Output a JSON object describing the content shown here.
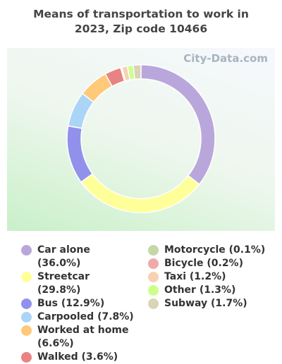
{
  "chart_data": {
    "type": "donut",
    "title": "Means of transportation to work in 2023, Zip code 10466",
    "watermark": "City-Data.com",
    "categories": [
      "Car alone (36.0%)",
      "Streetcar (29.8%)",
      "Bus (12.9%)",
      "Carpooled (7.8%)",
      "Worked at home (6.6%)",
      "Walked (3.6%)",
      "Motorcycle (0.1%)",
      "Bicycle (0.2%)",
      "Taxi (1.2%)",
      "Other (1.3%)",
      "Subway (1.7%)"
    ],
    "values": [
      36.0,
      29.8,
      12.9,
      7.8,
      6.6,
      3.6,
      0.1,
      0.2,
      1.2,
      1.3,
      1.7
    ],
    "colors": [
      "#b9a7dc",
      "#ffff99",
      "#9191ec",
      "#aad5f6",
      "#ffc97a",
      "#e98383",
      "#c6d6a8",
      "#f0a9a9",
      "#f7d1b2",
      "#cdff8c",
      "#d9d5b4"
    ]
  }
}
